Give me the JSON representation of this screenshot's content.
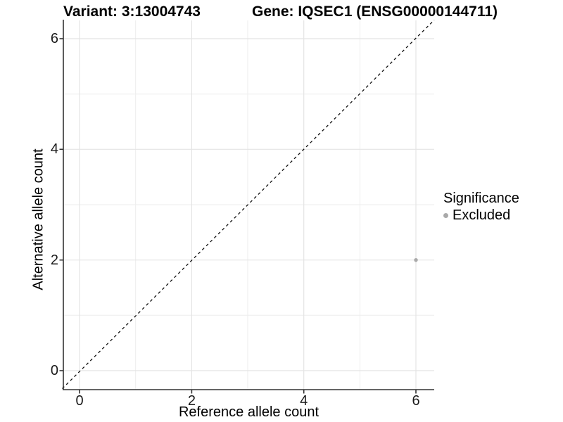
{
  "titles": {
    "variant": "Variant: 3:13004743",
    "gene": "Gene: IQSEC1 (ENSG00000144711)"
  },
  "chart_data": {
    "type": "scatter",
    "title_left": "Variant: 3:13004743",
    "title_right": "Gene: IQSEC1 (ENSG00000144711)",
    "xlabel": "Reference allele count",
    "ylabel": "Alternative allele count",
    "xlim": [
      -0.3,
      6.3
    ],
    "ylim": [
      -0.3,
      6.3
    ],
    "x_ticks": [
      "0",
      "2",
      "4",
      "6"
    ],
    "y_ticks": [
      "0",
      "2",
      "4",
      "6"
    ],
    "x_minor_ticks": [
      1,
      3,
      5
    ],
    "y_minor_ticks": [
      1,
      3,
      5
    ],
    "grid": "on",
    "reference_line": {
      "type": "identity y=x",
      "style": "dashed",
      "color": "#000000"
    },
    "series": [
      {
        "name": "Excluded",
        "color": "#a9a9a9",
        "points": [
          {
            "x": 6,
            "y": 2
          }
        ]
      }
    ],
    "legend": {
      "title": "Significance",
      "position": "right",
      "entries": [
        {
          "label": "Excluded",
          "color": "#a9a9a9"
        }
      ]
    }
  },
  "colors": {
    "background": "#ffffff",
    "axis_line": "#333333",
    "grid_major": "#e4e4e4",
    "grid_minor": "#ededed",
    "point": "#a9a9a9",
    "dashed_line": "#111111"
  }
}
